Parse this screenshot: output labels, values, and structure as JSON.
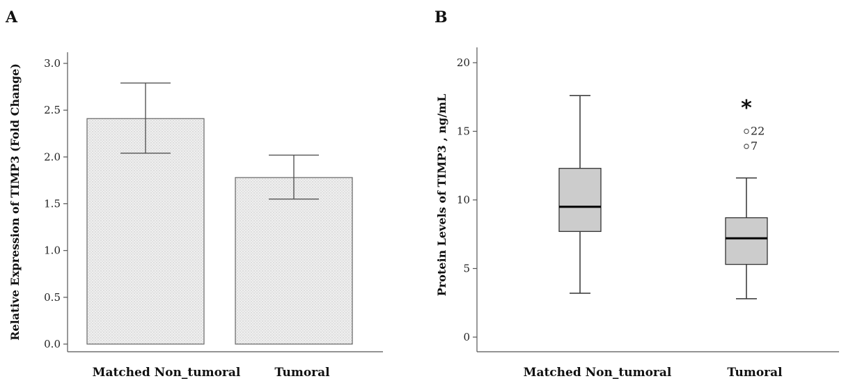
{
  "chart_data": [
    {
      "panel": "A",
      "type": "bar",
      "title": "",
      "ylabel": "Relative Expression of TIMP3 (Fold Change)",
      "xlabel": "",
      "ylim": [
        0,
        3.0
      ],
      "yticks": [
        "0.0",
        "0.5",
        "1.0",
        "1.5",
        "2.0",
        "2.5",
        "3.0"
      ],
      "categories": [
        "Matched Non_tumoral",
        "Tumoral"
      ],
      "values": [
        2.41,
        1.78
      ],
      "error_low": [
        2.04,
        1.55
      ],
      "error_high": [
        2.79,
        2.02
      ],
      "bar_fill": "#efefef",
      "bar_stroke": "#666666",
      "grid": false
    },
    {
      "panel": "B",
      "type": "boxplot",
      "title": "",
      "ylabel": "Protein Levels of TIMP3 , ng/mL",
      "xlabel": "",
      "ylim": [
        -0.5,
        21
      ],
      "yticks": [
        "0",
        "5",
        "10",
        "15",
        "20"
      ],
      "categories": [
        "Matched Non_tumoral",
        "Tumoral"
      ],
      "boxes": [
        {
          "whisker_low": 3.2,
          "q1": 7.7,
          "median": 9.5,
          "q3": 12.3,
          "whisker_high": 17.6,
          "outliers": []
        },
        {
          "whisker_low": 2.8,
          "q1": 5.3,
          "median": 7.2,
          "q3": 8.7,
          "whisker_high": 11.6,
          "outliers": [
            {
              "value": 15.0,
              "label": "22"
            },
            {
              "value": 13.9,
              "label": "7"
            }
          ]
        }
      ],
      "significance_marker": "*",
      "box_fill": "#cccccc",
      "grid": false
    }
  ]
}
